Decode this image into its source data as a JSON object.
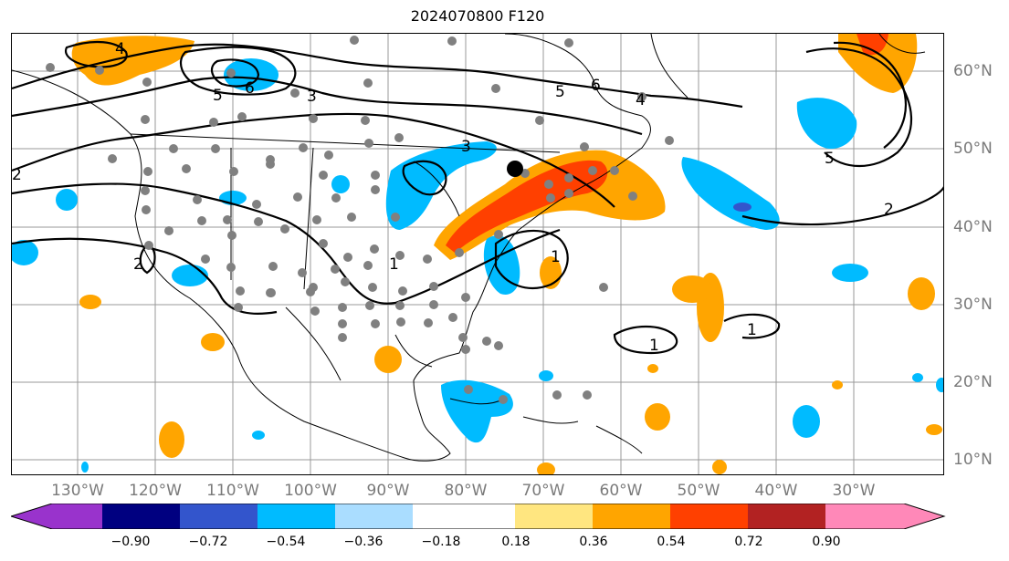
{
  "title": "2024070800 F120",
  "lon_labels": [
    "130°W",
    "120°W",
    "110°W",
    "100°W",
    "90°W",
    "80°W",
    "70°W",
    "60°W",
    "50°W",
    "40°W",
    "30°W"
  ],
  "lat_labels": [
    "60°N",
    "50°N",
    "40°N",
    "30°N",
    "20°N",
    "10°N"
  ],
  "colorbar": {
    "colors": [
      "#9933cc",
      "#000080",
      "#3355cc",
      "#00bbff",
      "#aaddff",
      "#ffffff",
      "#ffe680",
      "#ffa500",
      "#ff4000",
      "#b22222",
      "#ff88b8"
    ],
    "ticks": [
      "−0.90",
      "−0.72",
      "−0.54",
      "−0.36",
      "−0.18",
      "0.18",
      "0.36",
      "0.54",
      "0.72",
      "0.90"
    ]
  },
  "contour_labels": [
    "4",
    "5",
    "6",
    "3",
    "5",
    "6",
    "4",
    "3",
    "2",
    "2",
    "1",
    "1",
    "1",
    "1",
    "2",
    "5"
  ],
  "colors": {
    "positive": "#ffa500",
    "positive_strong": "#ff4000",
    "negative": "#00bbff",
    "negative_strong": "#3355cc",
    "station": "#808080",
    "grid": "#999999"
  }
}
